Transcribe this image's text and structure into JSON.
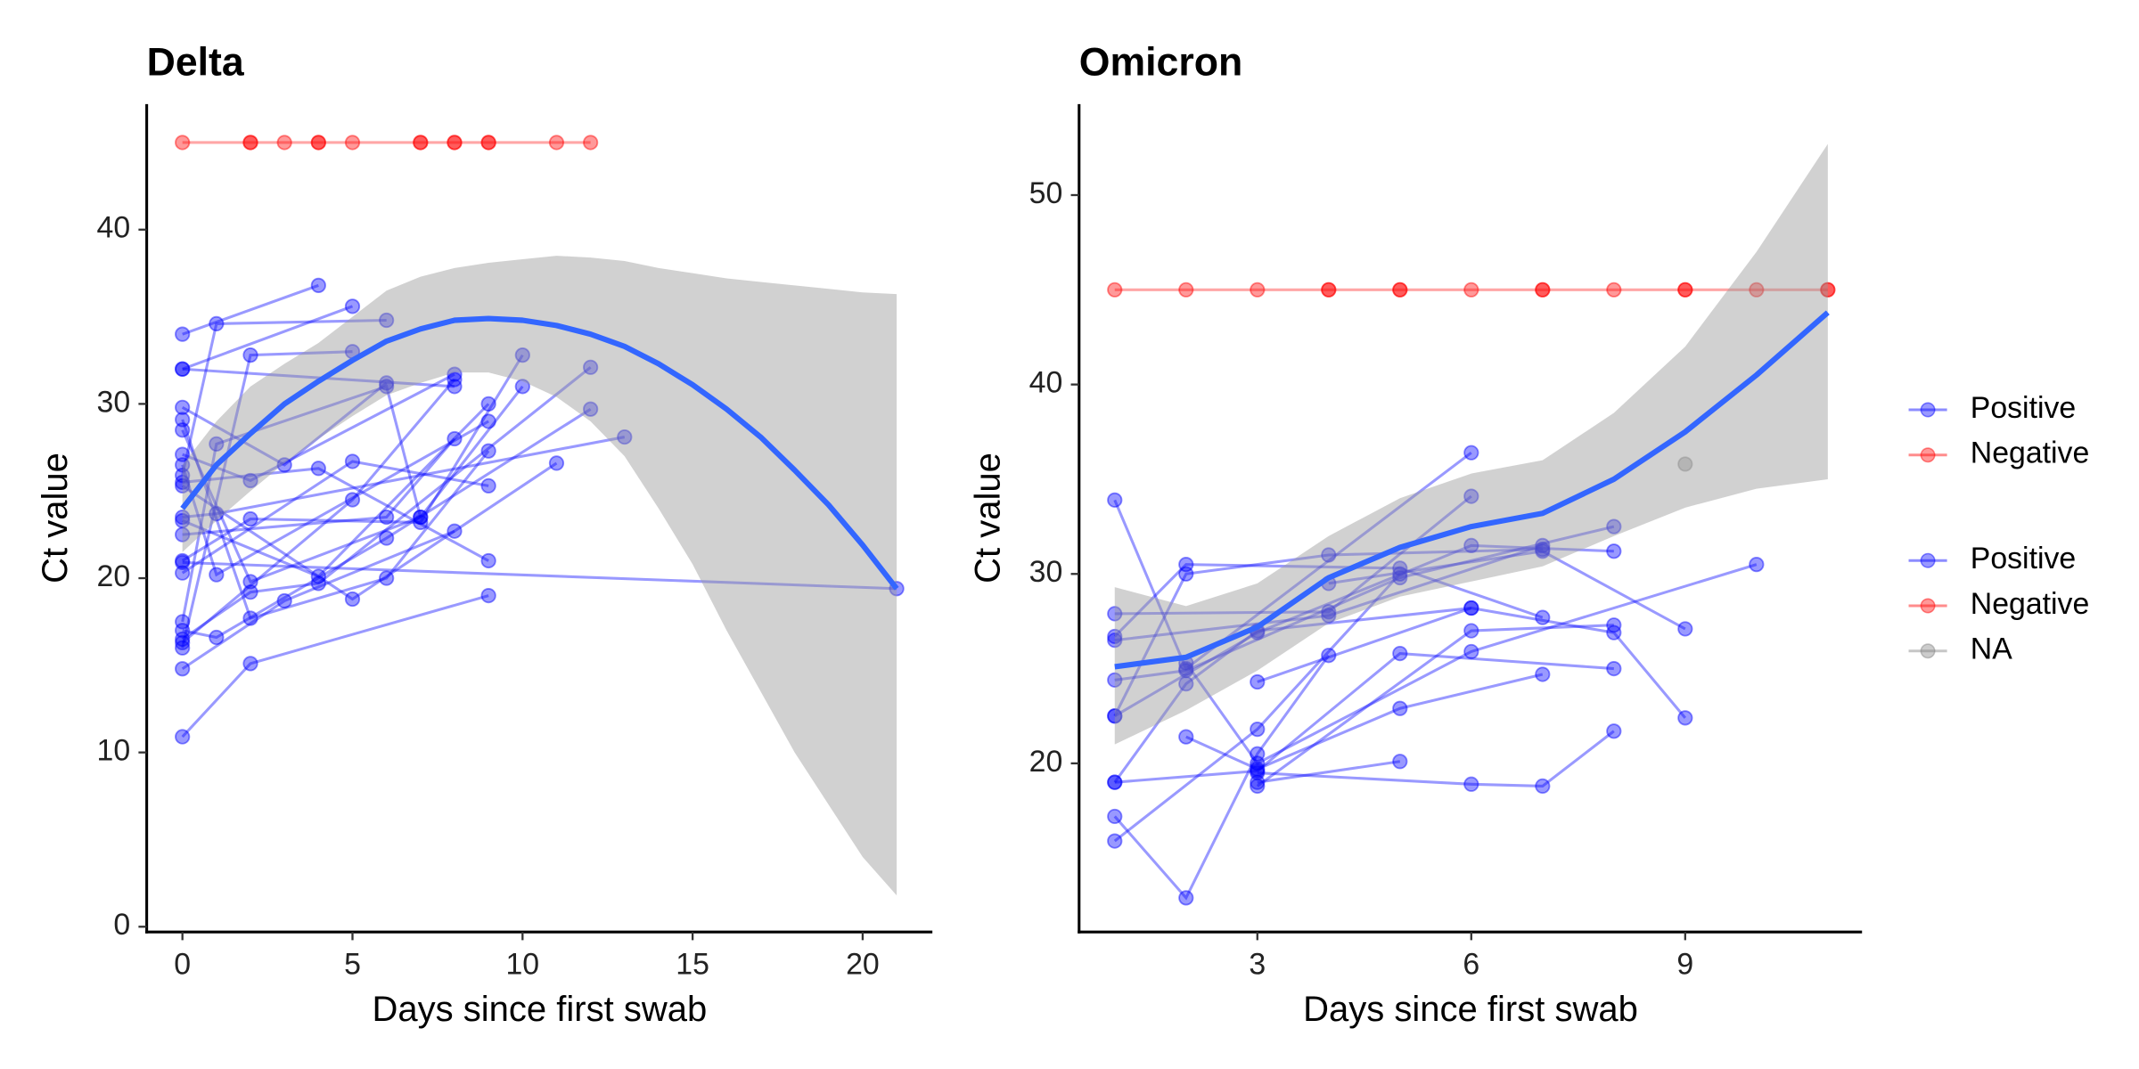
{
  "chart_data": [
    {
      "type": "line",
      "title": "Delta",
      "x_label": "Days since first swab",
      "y_label": "Ct value",
      "xlim": [
        -1.05,
        22.05
      ],
      "ylim": [
        -0.3,
        47.2
      ],
      "xticks": [
        0,
        5,
        10,
        15,
        20
      ],
      "yticks": [
        0,
        10,
        20,
        30,
        40
      ],
      "colors": {
        "positive": "#0000ff",
        "negative": "#ff0000",
        "na": "#808080",
        "smooth": "#3366ff",
        "ribbon": "#999999"
      },
      "positive": [
        {
          "x": [
            0,
            4
          ],
          "values": [
            34.0,
            36.8
          ]
        },
        {
          "x": [
            0,
            5
          ],
          "values": [
            32.0,
            35.6
          ]
        },
        {
          "x": [
            0,
            1,
            6
          ],
          "values": [
            25.9,
            34.6,
            34.8
          ]
        },
        {
          "x": [
            0,
            2,
            5
          ],
          "values": [
            16.0,
            32.8,
            33.0
          ]
        },
        {
          "x": [
            0,
            8
          ],
          "values": [
            32.0,
            31.0
          ]
        },
        {
          "x": [
            0,
            1,
            6,
            7
          ],
          "values": [
            17.5,
            27.7,
            31.0,
            23.5
          ]
        },
        {
          "x": [
            0,
            3,
            6
          ],
          "values": [
            29.8,
            26.5,
            31.2
          ]
        },
        {
          "x": [
            0,
            2,
            8
          ],
          "values": [
            27.1,
            25.6,
            31.7
          ]
        },
        {
          "x": [
            0,
            4,
            9
          ],
          "values": [
            23.3,
            20.1,
            30.0
          ]
        },
        {
          "x": [
            0,
            2,
            7,
            10
          ],
          "values": [
            21.0,
            23.4,
            23.2,
            32.8
          ]
        },
        {
          "x": [
            0,
            5,
            9
          ],
          "values": [
            20.3,
            26.7,
            25.3
          ]
        },
        {
          "x": [
            0,
            21
          ],
          "values": [
            20.9,
            19.4
          ]
        },
        {
          "x": [
            0,
            3,
            8
          ],
          "values": [
            14.8,
            18.7,
            22.7
          ]
        },
        {
          "x": [
            0,
            2,
            9
          ],
          "values": [
            10.9,
            15.1,
            19.0
          ]
        },
        {
          "x": [
            0,
            1,
            6,
            12
          ],
          "values": [
            17.0,
            16.6,
            22.3,
            29.7
          ]
        },
        {
          "x": [
            0,
            2,
            4,
            12
          ],
          "values": [
            16.5,
            19.2,
            19.7,
            32.1
          ]
        },
        {
          "x": [
            0,
            5,
            11
          ],
          "values": [
            25.3,
            18.8,
            26.6
          ]
        },
        {
          "x": [
            0,
            1,
            13
          ],
          "values": [
            23.5,
            23.7,
            28.1
          ]
        },
        {
          "x": [
            0,
            2,
            6,
            9
          ],
          "values": [
            29.1,
            17.7,
            20.0,
            27.3
          ]
        },
        {
          "x": [
            0,
            2,
            7,
            10
          ],
          "values": [
            28.5,
            19.8,
            23.5,
            31.0
          ]
        },
        {
          "x": [
            0,
            6,
            8
          ],
          "values": [
            22.5,
            23.5,
            28.0
          ]
        },
        {
          "x": [
            0,
            4,
            9
          ],
          "values": [
            25.5,
            26.3,
            21.0
          ]
        },
        {
          "x": [
            0,
            5,
            8
          ],
          "values": [
            16.3,
            24.5,
            31.4
          ]
        },
        {
          "x": [
            0,
            1,
            9
          ],
          "values": [
            26.5,
            20.2,
            29.0
          ]
        }
      ],
      "negative": {
        "x": [
          0,
          2,
          2,
          3,
          4,
          4,
          5,
          7,
          7,
          8,
          8,
          9,
          9,
          11,
          12
        ],
        "values": [
          45,
          45,
          45,
          45,
          45,
          45,
          45,
          45,
          45,
          45,
          45,
          45,
          45,
          45,
          45
        ]
      },
      "smooth": {
        "x": [
          0,
          1,
          2,
          3,
          4,
          5,
          6,
          7,
          8,
          9,
          10,
          11,
          12,
          13,
          14,
          15,
          16,
          17,
          18,
          19,
          20,
          21
        ],
        "values": [
          24.0,
          26.5,
          28.3,
          30.0,
          31.3,
          32.5,
          33.6,
          34.3,
          34.8,
          34.9,
          34.8,
          34.5,
          34.0,
          33.3,
          32.3,
          31.1,
          29.7,
          28.1,
          26.2,
          24.2,
          21.9,
          19.4
        ],
        "lower": [
          21.5,
          23.3,
          25.0,
          26.6,
          28.0,
          29.3,
          30.5,
          31.2,
          31.8,
          31.8,
          31.3,
          30.4,
          29.0,
          27.0,
          24.0,
          20.8,
          17.0,
          13.5,
          10.0,
          7.0,
          4.0,
          1.8
        ],
        "upper": [
          26.5,
          29.0,
          31.0,
          32.3,
          33.5,
          35.0,
          36.5,
          37.3,
          37.8,
          38.1,
          38.3,
          38.5,
          38.4,
          38.2,
          37.8,
          37.5,
          37.2,
          37.0,
          36.8,
          36.6,
          36.4,
          36.3
        ]
      }
    },
    {
      "type": "line",
      "title": "Omicron",
      "x_label": "Days since first swab",
      "y_label": "Ct value",
      "xlim": [
        0.5,
        11.48
      ],
      "ylim": [
        11.1,
        54.8
      ],
      "xticks": [
        3,
        6,
        9
      ],
      "yticks": [
        20,
        30,
        40,
        50
      ],
      "colors": {
        "positive": "#0000ff",
        "negative": "#ff0000",
        "na": "#808080",
        "smooth": "#3366ff",
        "ribbon": "#999999"
      },
      "positive": [
        {
          "x": [
            1,
            2,
            6
          ],
          "values": [
            33.9,
            25.0,
            36.4
          ]
        },
        {
          "x": [
            1,
            4,
            6
          ],
          "values": [
            27.9,
            28.0,
            34.1
          ]
        },
        {
          "x": [
            1,
            2,
            5,
            7
          ],
          "values": [
            26.7,
            30.5,
            30.3,
            27.7
          ]
        },
        {
          "x": [
            1,
            4,
            7
          ],
          "values": [
            26.5,
            27.8,
            31.5
          ]
        },
        {
          "x": [
            1,
            2,
            5,
            8
          ],
          "values": [
            24.4,
            24.9,
            29.8,
            32.5
          ]
        },
        {
          "x": [
            1,
            3,
            6,
            8
          ],
          "values": [
            22.5,
            26.9,
            31.5,
            31.2
          ]
        },
        {
          "x": [
            1,
            2,
            4,
            7
          ],
          "values": [
            22.5,
            30.0,
            31.0,
            31.3
          ]
        },
        {
          "x": [
            1,
            2,
            3,
            6
          ],
          "values": [
            19.0,
            24.2,
            27.0,
            28.2
          ]
        },
        {
          "x": [
            1,
            3,
            5,
            8
          ],
          "values": [
            19.0,
            19.6,
            25.8,
            25.0
          ]
        },
        {
          "x": [
            1,
            2,
            3,
            4
          ],
          "values": [
            17.2,
            12.9,
            20.5,
            25.7
          ]
        },
        {
          "x": [
            1,
            3,
            5
          ],
          "values": [
            15.9,
            21.8,
            30.0
          ]
        },
        {
          "x": [
            2,
            3,
            5,
            7
          ],
          "values": [
            21.4,
            19.7,
            22.9,
            24.7
          ]
        },
        {
          "x": [
            3,
            6,
            8
          ],
          "values": [
            18.8,
            27.0,
            27.3
          ]
        },
        {
          "x": [
            2,
            3,
            6,
            10
          ],
          "values": [
            25.3,
            20.0,
            25.9,
            30.5
          ]
        },
        {
          "x": [
            3,
            5
          ],
          "values": [
            19.0,
            20.1
          ]
        },
        {
          "x": [
            3,
            6,
            7,
            8
          ],
          "values": [
            19.5,
            18.9,
            18.8,
            21.7
          ]
        },
        {
          "x": [
            3,
            6,
            8,
            9
          ],
          "values": [
            24.3,
            28.2,
            26.9,
            22.4
          ]
        },
        {
          "x": [
            4,
            7,
            9
          ],
          "values": [
            29.5,
            31.2,
            27.1
          ]
        }
      ],
      "negative": {
        "x": [
          1,
          2,
          3,
          4,
          4,
          5,
          5,
          6,
          7,
          7,
          8,
          9,
          9,
          10,
          11,
          11
        ],
        "values": [
          45,
          45,
          45,
          45,
          45,
          45,
          45,
          45,
          45,
          45,
          45,
          45,
          45,
          45,
          45,
          45
        ]
      },
      "na": {
        "x": [
          9
        ],
        "values": [
          35.8
        ]
      },
      "smooth": {
        "x": [
          1,
          2,
          3,
          4,
          5,
          6,
          7,
          8,
          9,
          10,
          11
        ],
        "values": [
          25.1,
          25.6,
          27.2,
          29.8,
          31.4,
          32.5,
          33.2,
          35.0,
          37.5,
          40.5,
          43.8
        ],
        "lower": [
          21.0,
          22.8,
          24.9,
          27.4,
          28.8,
          29.6,
          30.4,
          32.0,
          33.5,
          34.5,
          35.0
        ],
        "upper": [
          29.3,
          28.3,
          29.5,
          32.0,
          34.0,
          35.3,
          36.0,
          38.5,
          42.0,
          47.0,
          52.7
        ]
      }
    }
  ],
  "legend": {
    "groups": [
      {
        "entries": [
          {
            "name": "Positive",
            "color": "#0000ff"
          },
          {
            "name": "Negative",
            "color": "#ff0000"
          }
        ]
      },
      {
        "entries": [
          {
            "name": "Positive",
            "color": "#0000ff"
          },
          {
            "name": "Negative",
            "color": "#ff0000"
          },
          {
            "name": "NA",
            "color": "#808080"
          }
        ]
      }
    ]
  }
}
